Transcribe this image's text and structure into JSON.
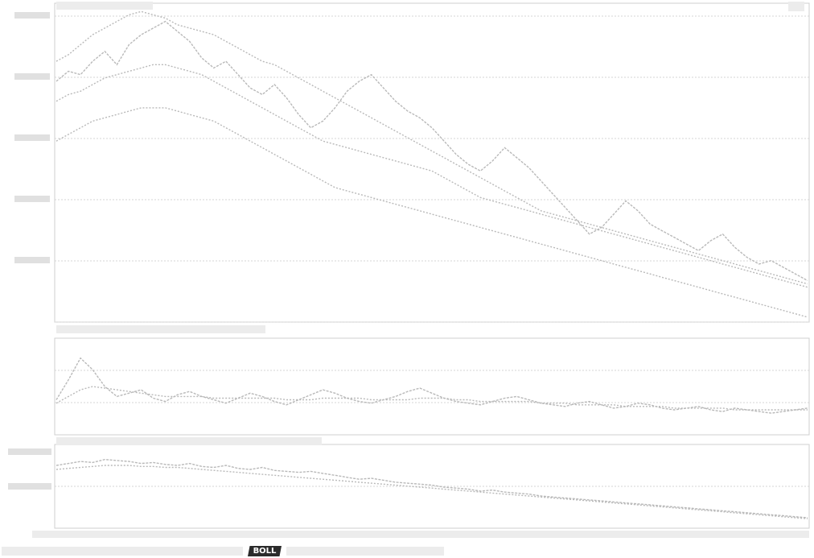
{
  "chart_data": {
    "type": "line",
    "indicator_tab": "BOLL",
    "colors": {
      "line": "#b9b9b9",
      "grid": "#d6d6d6",
      "frame": "#cfcfcf",
      "tab_bg": "#2b2b2b"
    },
    "panels": [
      {
        "id": "price",
        "series": [
          {
            "values": [
              122,
              125,
              124,
              128,
              131,
              127,
              133,
              136,
              138,
              140,
              137,
              134,
              129,
              126,
              128,
              124,
              120,
              118,
              121,
              117,
              112,
              108,
              110,
              114,
              119,
              122,
              124,
              120,
              116,
              113,
              111,
              108,
              104,
              100,
              97,
              95,
              98,
              102,
              99,
              96,
              92,
              88,
              84,
              80,
              76,
              78,
              82,
              86,
              83,
              79,
              77,
              75,
              73,
              71,
              74,
              76,
              72,
              69,
              67,
              68,
              66,
              64,
              62
            ]
          },
          {
            "values": [
              128,
              130,
              133,
              136,
              138,
              140,
              142,
              143,
              142,
              141,
              139,
              138,
              137,
              136,
              134,
              132,
              130,
              128,
              127,
              125,
              123,
              121,
              119,
              117,
              115,
              113,
              111,
              109,
              107,
              105,
              103,
              101,
              99,
              97,
              95,
              93,
              91,
              89,
              87,
              85,
              83,
              82,
              81,
              80,
              79,
              78,
              77,
              76,
              75,
              74,
              73,
              72,
              71,
              70,
              69,
              68,
              67,
              66,
              65,
              64,
              63,
              62,
              61
            ]
          },
          {
            "values": [
              116,
              118,
              119,
              121,
              123,
              124,
              125,
              126,
              127,
              127,
              126,
              125,
              124,
              122,
              120,
              118,
              116,
              114,
              112,
              110,
              108,
              106,
              104,
              103,
              102,
              101,
              100,
              99,
              98,
              97,
              96,
              95,
              93,
              91,
              89,
              87,
              86,
              85,
              84,
              83,
              82,
              81,
              80,
              79,
              78,
              77,
              76,
              75,
              74,
              73,
              72,
              71,
              70,
              69,
              68,
              67,
              66,
              65,
              64,
              63,
              62,
              61,
              60
            ]
          },
          {
            "values": [
              104,
              106,
              108,
              110,
              111,
              112,
              113,
              114,
              114,
              114,
              113,
              112,
              111,
              110,
              108,
              106,
              104,
              102,
              100,
              98,
              96,
              94,
              92,
              90,
              89,
              88,
              87,
              86,
              85,
              84,
              83,
              82,
              81,
              80,
              79,
              78,
              77,
              76,
              75,
              74,
              73,
              72,
              71,
              70,
              69,
              68,
              67,
              66,
              65,
              64,
              63,
              62,
              61,
              60,
              59,
              58,
              57,
              56,
              55,
              54,
              53,
              52,
              51
            ]
          }
        ],
        "ylim": [
          50,
          145
        ]
      },
      {
        "id": "volume",
        "series": [
          {
            "values": [
              20,
              32,
              45,
              38,
              28,
              22,
              24,
              26,
              21,
              19,
              23,
              25,
              22,
              20,
              18,
              21,
              24,
              22,
              19,
              17,
              20,
              23,
              26,
              24,
              21,
              19,
              18,
              20,
              22,
              25,
              27,
              24,
              21,
              19,
              18,
              17,
              19,
              21,
              22,
              20,
              18,
              17,
              16,
              18,
              19,
              17,
              15,
              16,
              18,
              17,
              15,
              14,
              15,
              16,
              14,
              13,
              15,
              14,
              13,
              12,
              13,
              14,
              15
            ]
          },
          {
            "values": [
              18,
              22,
              26,
              28,
              27,
              26,
              25,
              24,
              23,
              22,
              22,
              22,
              22,
              21,
              21,
              21,
              21,
              21,
              21,
              20,
              20,
              20,
              21,
              21,
              21,
              21,
              20,
              20,
              20,
              20,
              21,
              21,
              21,
              20,
              20,
              19,
              19,
              19,
              19,
              19,
              18,
              18,
              18,
              17,
              17,
              17,
              17,
              16,
              16,
              16,
              16,
              15,
              15,
              15,
              15,
              15,
              14,
              14,
              14,
              14,
              14,
              14,
              14
            ]
          }
        ],
        "ylim": [
          0,
          55
        ]
      },
      {
        "id": "indicator",
        "series": [
          {
            "values": [
              72,
              74,
              76,
              75,
              78,
              77,
              76,
              74,
              75,
              73,
              72,
              74,
              71,
              70,
              72,
              69,
              68,
              70,
              67,
              66,
              65,
              66,
              64,
              62,
              60,
              58,
              59,
              57,
              55,
              54,
              53,
              52,
              50,
              49,
              48,
              46,
              47,
              45,
              44,
              43,
              41,
              40,
              39,
              38,
              37,
              36,
              35,
              34,
              33,
              32,
              31,
              30,
              29,
              28,
              27,
              26,
              25,
              24,
              23,
              22,
              21,
              20,
              19
            ]
          },
          {
            "values": [
              68,
              69,
              70,
              71,
              72,
              72,
              72,
              71,
              71,
              70,
              70,
              69,
              68,
              67,
              66,
              65,
              64,
              63,
              62,
              61,
              60,
              59,
              58,
              57,
              56,
              55,
              54,
              53,
              52,
              51,
              50,
              49,
              48,
              47,
              46,
              45,
              44,
              43,
              42,
              41,
              40,
              39,
              38,
              37,
              36,
              35,
              34,
              33,
              32,
              31,
              30,
              29,
              28,
              27,
              26,
              25,
              24,
              23,
              22,
              21,
              20,
              19,
              18
            ]
          }
        ],
        "ylim": [
          10,
          90
        ]
      }
    ]
  }
}
